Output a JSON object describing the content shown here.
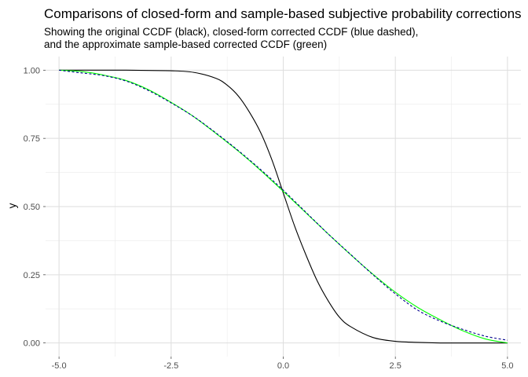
{
  "chart_data": {
    "type": "line",
    "title": "Comparisons of closed-form and sample-based subjective probability corrections",
    "subtitle_lines": [
      "Showing the original CCDF (black), closed-form corrected CCDF (blue dashed),",
      "and the approximate sample-based corrected CCDF (green)"
    ],
    "xlabel": "",
    "ylabel": "y",
    "xlim": [
      -5.3,
      5.3
    ],
    "ylim": [
      -0.05,
      1.05
    ],
    "x_ticks": [
      -5.0,
      -2.5,
      0.0,
      2.5,
      5.0
    ],
    "x_tick_labels": [
      "-5.0",
      "-2.5",
      "0.0",
      "2.5",
      "5.0"
    ],
    "y_ticks": [
      0.0,
      0.25,
      0.5,
      0.75,
      1.0
    ],
    "y_tick_labels": [
      "0.00",
      "0.25",
      "0.50",
      "0.75",
      "1.00"
    ],
    "grid": true,
    "legend": "none",
    "series": [
      {
        "color": "#000000",
        "dash": "solid",
        "x": [
          -5,
          -4.5,
          -4,
          -3.5,
          -3,
          -2.5,
          -2,
          -1.5,
          -1.25,
          -1,
          -0.75,
          -0.5,
          -0.25,
          0,
          0.25,
          0.5,
          0.75,
          1,
          1.25,
          1.5,
          2,
          2.5,
          3,
          3.5,
          4,
          4.5,
          5
        ],
        "y": [
          1.0,
          1.0,
          1.0,
          1.0,
          0.999,
          0.998,
          0.992,
          0.97,
          0.945,
          0.905,
          0.845,
          0.77,
          0.67,
          0.55,
          0.43,
          0.325,
          0.23,
          0.155,
          0.095,
          0.06,
          0.02,
          0.006,
          0.002,
          0.0,
          0.0,
          0.0,
          0.0
        ]
      },
      {
        "color": "#00008b",
        "dash": "dashed",
        "x": [
          -5,
          -4.5,
          -4,
          -3.5,
          -3,
          -2.5,
          -2,
          -1.5,
          -1,
          -0.5,
          0,
          0.5,
          1,
          1.5,
          2,
          2.5,
          3,
          3.5,
          4,
          4.5,
          5
        ],
        "y": [
          1.0,
          0.99,
          0.98,
          0.96,
          0.925,
          0.88,
          0.83,
          0.77,
          0.705,
          0.635,
          0.56,
          0.48,
          0.4,
          0.325,
          0.25,
          0.18,
          0.12,
          0.08,
          0.05,
          0.025,
          0.01
        ]
      },
      {
        "color": "#00ff00",
        "dash": "solid",
        "x": [
          -5,
          -4.5,
          -4,
          -3.5,
          -3,
          -2.5,
          -2,
          -1.5,
          -1,
          -0.5,
          0,
          0.5,
          1,
          1.5,
          2,
          2.5,
          3,
          3.5,
          4,
          4.5,
          5
        ],
        "y": [
          1.0,
          0.995,
          0.982,
          0.962,
          0.928,
          0.882,
          0.83,
          0.768,
          0.703,
          0.632,
          0.556,
          0.478,
          0.4,
          0.324,
          0.252,
          0.186,
          0.13,
          0.085,
          0.045,
          0.015,
          0.0
        ]
      }
    ]
  }
}
